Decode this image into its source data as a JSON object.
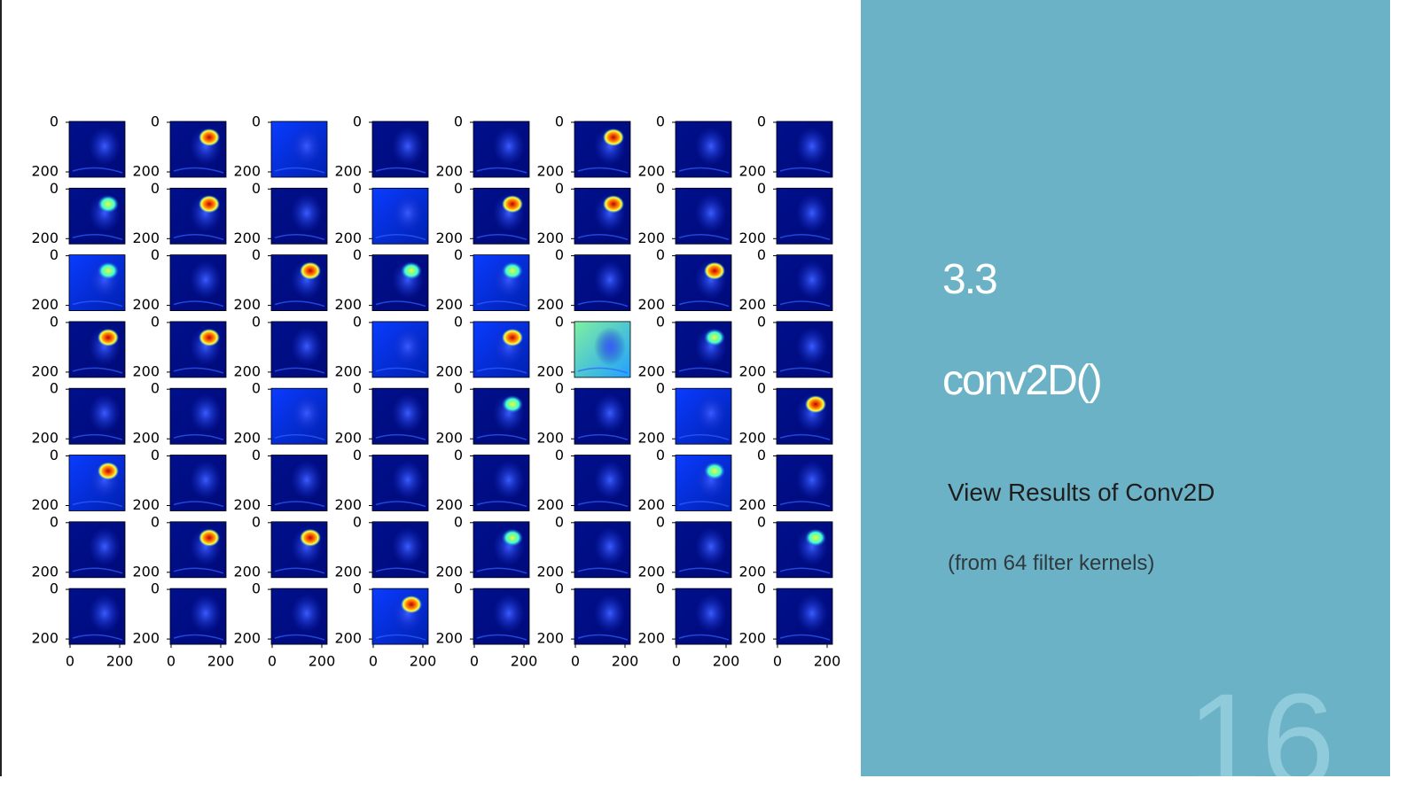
{
  "slide": {
    "section": "3.3",
    "title": "conv2D()",
    "subtitle": "View Results of Conv2D",
    "note": "(from 64 filter kernels)",
    "number": "16"
  },
  "figure": {
    "ticks": [
      0,
      200
    ]
  }
}
